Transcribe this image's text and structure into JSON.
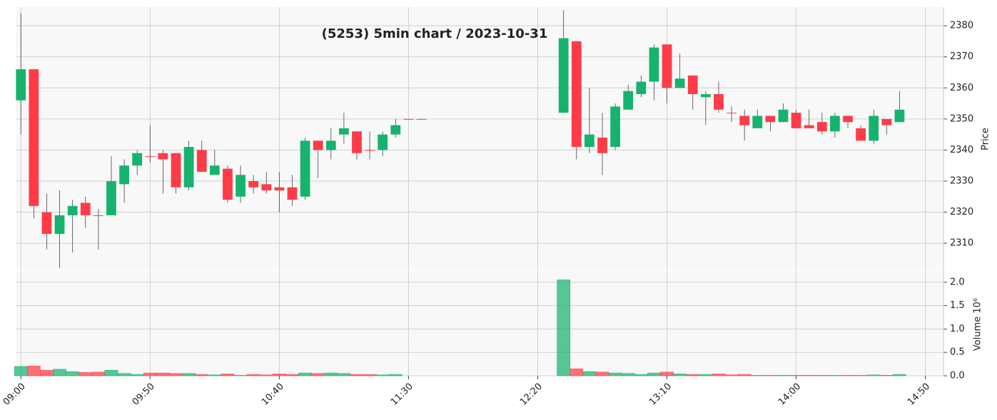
{
  "chart_data": {
    "type": "candlestick",
    "title": "(5253) 5min chart / 2023-10-31",
    "ylabel": "Price",
    "volume_label": "Volume  10⁶",
    "x": [
      "09:00",
      "09:05",
      "09:10",
      "09:15",
      "09:20",
      "09:25",
      "09:30",
      "09:35",
      "09:40",
      "09:45",
      "09:50",
      "09:55",
      "10:00",
      "10:05",
      "10:10",
      "10:15",
      "10:20",
      "10:25",
      "10:30",
      "10:35",
      "10:40",
      "10:45",
      "10:50",
      "10:55",
      "11:00",
      "11:05",
      "11:10",
      "11:15",
      "11:20",
      "11:25",
      "11:30",
      "11:35",
      "12:30",
      "12:35",
      "12:40",
      "12:45",
      "12:50",
      "12:55",
      "13:00",
      "13:05",
      "13:10",
      "13:15",
      "13:20",
      "13:25",
      "13:30",
      "13:35",
      "13:40",
      "13:45",
      "13:50",
      "13:55",
      "14:00",
      "14:05",
      "14:10",
      "14:15",
      "14:20",
      "14:25",
      "14:30",
      "14:35",
      "14:40"
    ],
    "open": [
      2356,
      2366,
      2320,
      2313,
      2319,
      2323,
      2319,
      2319,
      2329,
      2335,
      2338,
      2339,
      2339,
      2328,
      2340,
      2332,
      2334,
      2325,
      2330,
      2329,
      2328,
      2328,
      2325,
      2343,
      2340,
      2345,
      2346,
      2340,
      2340,
      2345,
      2350,
      2350,
      2352,
      2375,
      2341,
      2344,
      2341,
      2353,
      2358,
      2362,
      2374,
      2360,
      2364,
      2357,
      2358,
      2352,
      2351,
      2347,
      2351,
      2349,
      2352,
      2348,
      2349,
      2346,
      2351,
      2347,
      2343,
      2350,
      2349
    ],
    "high": [
      2384,
      2366,
      2326,
      2327,
      2324,
      2325,
      2321,
      2338,
      2337,
      2340,
      2348,
      2340,
      2339,
      2343,
      2343,
      2340,
      2335,
      2335,
      2332,
      2333,
      2333,
      2332,
      2344,
      2343,
      2347,
      2352,
      2346,
      2346,
      2346,
      2350,
      2350,
      2350,
      2385,
      2375,
      2360,
      2352,
      2355,
      2361,
      2364,
      2374,
      2374,
      2371,
      2364,
      2359,
      2362,
      2354,
      2353,
      2353,
      2351,
      2355,
      2353,
      2353,
      2352,
      2352,
      2351,
      2348,
      2353,
      2350,
      2359
    ],
    "low": [
      2345,
      2318,
      2308,
      2302,
      2307,
      2315,
      2308,
      2319,
      2323,
      2332,
      2336,
      2326,
      2326,
      2327,
      2333,
      2332,
      2323,
      2323,
      2326,
      2326,
      2320,
      2322,
      2324,
      2331,
      2337,
      2342,
      2337,
      2337,
      2338,
      2344,
      2350,
      2350,
      2352,
      2337,
      2339,
      2332,
      2340,
      2353,
      2357,
      2356,
      2355,
      2360,
      2353,
      2348,
      2352,
      2349,
      2343,
      2347,
      2346,
      2349,
      2347,
      2347,
      2345,
      2344,
      2347,
      2343,
      2342,
      2345,
      2349
    ],
    "close": [
      2366,
      2322,
      2313,
      2319,
      2322,
      2319,
      2319,
      2330,
      2335,
      2339,
      2338,
      2337,
      2328,
      2341,
      2333,
      2335,
      2324,
      2332,
      2328,
      2327,
      2327,
      2324,
      2343,
      2340,
      2343,
      2347,
      2339,
      2340,
      2345,
      2348,
      2350,
      2350,
      2376,
      2341,
      2345,
      2339,
      2354,
      2359,
      2362,
      2373,
      2360,
      2363,
      2358,
      2358,
      2353,
      2352,
      2348,
      2351,
      2349,
      2353,
      2347,
      2347,
      2346,
      2351,
      2349,
      2343,
      2351,
      2348,
      2353
    ],
    "volume": [
      0.2,
      0.21,
      0.12,
      0.14,
      0.09,
      0.07,
      0.08,
      0.12,
      0.05,
      0.03,
      0.06,
      0.06,
      0.05,
      0.05,
      0.03,
      0.02,
      0.04,
      0.01,
      0.03,
      0.02,
      0.04,
      0.03,
      0.06,
      0.05,
      0.06,
      0.05,
      0.03,
      0.03,
      0.02,
      0.03,
      0,
      0,
      2.05,
      0.15,
      0.09,
      0.08,
      0.06,
      0.05,
      0.03,
      0.06,
      0.08,
      0.04,
      0.03,
      0.03,
      0.04,
      0.02,
      0.03,
      0.01,
      0.01,
      0.01,
      0.01,
      0.01,
      0.01,
      0.01,
      0.01,
      0.01,
      0.02,
      0.01,
      0.03
    ],
    "up_color": "#16b36f",
    "down_color": "#ff3b47",
    "xlim": [
      "08:58",
      "14:57"
    ],
    "xticks": [
      "09:00",
      "09:50",
      "10:40",
      "11:30",
      "12:20",
      "13:10",
      "14:00",
      "14:50"
    ],
    "ylim": [
      2301.3,
      2386
    ],
    "yticks": [
      2310,
      2320,
      2330,
      2340,
      2350,
      2360,
      2370,
      2380
    ],
    "vlim": [
      0,
      2.24
    ],
    "vticks": [
      {
        "value": 0,
        "label": "0.0"
      },
      {
        "value": 0.5,
        "label": "0.5"
      },
      {
        "value": 1,
        "label": "1.0"
      },
      {
        "value": 1.5,
        "label": "1.5"
      },
      {
        "value": 2,
        "label": "2.0"
      }
    ],
    "grid": true
  }
}
